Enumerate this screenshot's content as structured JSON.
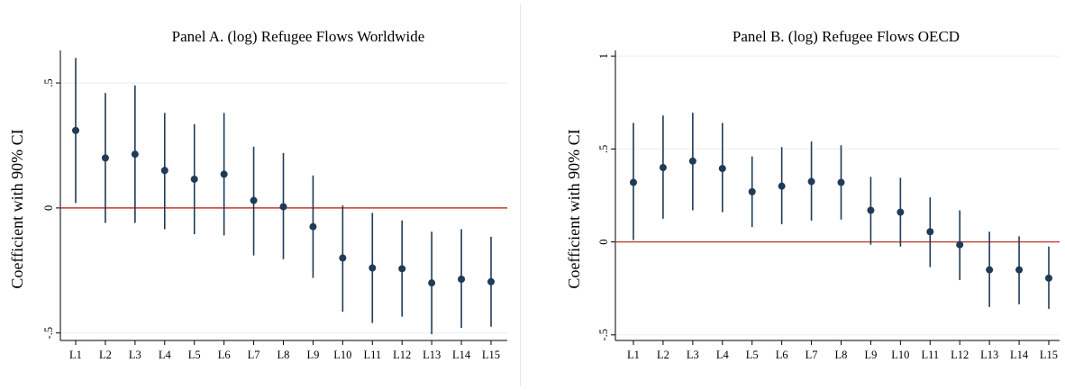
{
  "chart_data": [
    {
      "type": "scatter",
      "title": "Panel A. (log) Refugee Flows Worldwide",
      "ylabel": "Coefficient with 90% CI",
      "xlabel": "",
      "categories": [
        "L1",
        "L2",
        "L3",
        "L4",
        "L5",
        "L6",
        "L7",
        "L8",
        "L9",
        "L10",
        "L11",
        "L12",
        "L13",
        "L14",
        "L15"
      ],
      "values": [
        0.31,
        0.2,
        0.215,
        0.15,
        0.115,
        0.135,
        0.03,
        0.005,
        -0.075,
        -0.2,
        -0.24,
        -0.243,
        -0.3,
        -0.285,
        -0.295
      ],
      "ci_low": [
        0.02,
        -0.06,
        -0.06,
        -0.085,
        -0.105,
        -0.11,
        -0.19,
        -0.205,
        -0.28,
        -0.415,
        -0.46,
        -0.435,
        -0.505,
        -0.48,
        -0.475
      ],
      "ci_high": [
        0.6,
        0.46,
        0.49,
        0.38,
        0.335,
        0.38,
        0.245,
        0.22,
        0.13,
        0.01,
        -0.02,
        -0.05,
        -0.095,
        -0.085,
        -0.115
      ],
      "ylim": [
        -0.53,
        0.63
      ],
      "yticks": [
        -0.5,
        0,
        0.5
      ],
      "ytick_labels": [
        "-.5",
        "0",
        ".5"
      ],
      "reference_line": 0,
      "colors": {
        "point": "#1f3b57",
        "ref_line": "#c0392b",
        "grid": "#eeeeee"
      }
    },
    {
      "type": "scatter",
      "title": "Panel B. (log) Refugee Flows OECD",
      "ylabel": "Coefficient with 90% CI",
      "xlabel": "",
      "categories": [
        "L1",
        "L2",
        "L3",
        "L4",
        "L5",
        "L6",
        "L7",
        "L8",
        "L9",
        "L10",
        "L11",
        "L12",
        "L13",
        "L14",
        "L15"
      ],
      "values": [
        0.32,
        0.4,
        0.435,
        0.395,
        0.27,
        0.3,
        0.325,
        0.32,
        0.17,
        0.16,
        0.055,
        -0.015,
        -0.15,
        -0.15,
        -0.195
      ],
      "ci_low": [
        0.01,
        0.125,
        0.17,
        0.16,
        0.08,
        0.095,
        0.115,
        0.12,
        -0.015,
        -0.025,
        -0.135,
        -0.205,
        -0.35,
        -0.335,
        -0.36
      ],
      "ci_high": [
        0.64,
        0.68,
        0.695,
        0.64,
        0.46,
        0.51,
        0.54,
        0.52,
        0.35,
        0.345,
        0.24,
        0.17,
        0.055,
        0.03,
        -0.025
      ],
      "ylim": [
        -0.53,
        1.03
      ],
      "yticks": [
        -0.5,
        0,
        0.5,
        1
      ],
      "ytick_labels": [
        "-.5",
        "0",
        ".5",
        "1"
      ],
      "reference_line": 0,
      "colors": {
        "point": "#1f3b57",
        "ref_line": "#c0392b",
        "grid": "#eeeeee"
      }
    }
  ]
}
